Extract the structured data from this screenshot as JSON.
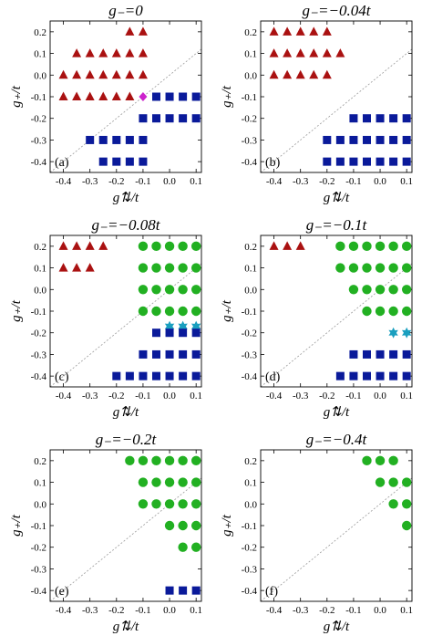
{
  "chart_data": [
    {
      "type": "scatter",
      "panel_label": "(a)",
      "title": "g₋=0",
      "xlabel": "g⇅/t",
      "ylabel": "g₊/t",
      "xlim": [
        -0.45,
        0.12
      ],
      "ylim": [
        -0.45,
        0.25
      ],
      "xticks": [
        "-0.4",
        "-0.3",
        "-0.2",
        "-0.1",
        "0.0",
        "0.1"
      ],
      "yticks": [
        "0.2",
        "0.1",
        "0.0",
        "-0.1",
        "-0.2",
        "-0.3",
        "-0.4"
      ],
      "diagonal": true,
      "series": [
        {
          "marker": "triangle",
          "color": "#aa1111",
          "points": [
            [
              -0.15,
              0.2
            ],
            [
              -0.1,
              0.2
            ],
            [
              -0.35,
              0.1
            ],
            [
              -0.3,
              0.1
            ],
            [
              -0.25,
              0.1
            ],
            [
              -0.2,
              0.1
            ],
            [
              -0.15,
              0.1
            ],
            [
              -0.1,
              0.1
            ],
            [
              -0.4,
              0.0
            ],
            [
              -0.35,
              0.0
            ],
            [
              -0.3,
              0.0
            ],
            [
              -0.25,
              0.0
            ],
            [
              -0.2,
              0.0
            ],
            [
              -0.15,
              0.0
            ],
            [
              -0.1,
              0.0
            ],
            [
              -0.4,
              -0.1
            ],
            [
              -0.35,
              -0.1
            ],
            [
              -0.3,
              -0.1
            ],
            [
              -0.25,
              -0.1
            ],
            [
              -0.2,
              -0.1
            ],
            [
              -0.15,
              -0.1
            ]
          ]
        },
        {
          "marker": "diamond",
          "color": "#cc22cc",
          "points": [
            [
              -0.1,
              -0.1
            ]
          ]
        },
        {
          "marker": "square",
          "color": "#0a1a9a",
          "points": [
            [
              -0.05,
              -0.1
            ],
            [
              0.0,
              -0.1
            ],
            [
              0.05,
              -0.1
            ],
            [
              0.1,
              -0.1
            ],
            [
              -0.1,
              -0.2
            ],
            [
              -0.05,
              -0.2
            ],
            [
              0.0,
              -0.2
            ],
            [
              0.05,
              -0.2
            ],
            [
              0.1,
              -0.2
            ],
            [
              -0.3,
              -0.3
            ],
            [
              -0.25,
              -0.3
            ],
            [
              -0.2,
              -0.3
            ],
            [
              -0.15,
              -0.3
            ],
            [
              -0.1,
              -0.3
            ],
            [
              -0.25,
              -0.4
            ],
            [
              -0.2,
              -0.4
            ],
            [
              -0.15,
              -0.4
            ],
            [
              -0.1,
              -0.4
            ]
          ]
        }
      ]
    },
    {
      "type": "scatter",
      "panel_label": "(b)",
      "title": "g₋=−0.04t",
      "xlabel": "g⇅/t",
      "ylabel": "g₊/t",
      "xlim": [
        -0.45,
        0.12
      ],
      "ylim": [
        -0.45,
        0.25
      ],
      "xticks": [
        "-0.4",
        "-0.3",
        "-0.2",
        "-0.1",
        "0.0",
        "0.1"
      ],
      "yticks": [
        "0.2",
        "0.1",
        "0.0",
        "-0.1",
        "-0.2",
        "-0.3",
        "-0.4"
      ],
      "diagonal": true,
      "series": [
        {
          "marker": "triangle",
          "color": "#aa1111",
          "points": [
            [
              -0.4,
              0.2
            ],
            [
              -0.35,
              0.2
            ],
            [
              -0.3,
              0.2
            ],
            [
              -0.25,
              0.2
            ],
            [
              -0.2,
              0.2
            ],
            [
              -0.4,
              0.1
            ],
            [
              -0.35,
              0.1
            ],
            [
              -0.3,
              0.1
            ],
            [
              -0.25,
              0.1
            ],
            [
              -0.2,
              0.1
            ],
            [
              -0.15,
              0.1
            ],
            [
              -0.4,
              0.0
            ],
            [
              -0.35,
              0.0
            ],
            [
              -0.3,
              0.0
            ],
            [
              -0.25,
              0.0
            ],
            [
              -0.2,
              0.0
            ]
          ]
        },
        {
          "marker": "square",
          "color": "#0a1a9a",
          "points": [
            [
              -0.1,
              -0.2
            ],
            [
              -0.05,
              -0.2
            ],
            [
              0.0,
              -0.2
            ],
            [
              0.05,
              -0.2
            ],
            [
              0.1,
              -0.2
            ],
            [
              -0.2,
              -0.3
            ],
            [
              -0.15,
              -0.3
            ],
            [
              -0.1,
              -0.3
            ],
            [
              -0.05,
              -0.3
            ],
            [
              0.0,
              -0.3
            ],
            [
              0.05,
              -0.3
            ],
            [
              0.1,
              -0.3
            ],
            [
              -0.2,
              -0.4
            ],
            [
              -0.15,
              -0.4
            ],
            [
              -0.1,
              -0.4
            ],
            [
              -0.05,
              -0.4
            ],
            [
              0.0,
              -0.4
            ],
            [
              0.05,
              -0.4
            ],
            [
              0.1,
              -0.4
            ]
          ]
        }
      ]
    },
    {
      "type": "scatter",
      "panel_label": "(c)",
      "title": "g₋=−0.08t",
      "xlabel": "g⇅/t",
      "ylabel": "g₊/t",
      "xlim": [
        -0.45,
        0.12
      ],
      "ylim": [
        -0.45,
        0.25
      ],
      "xticks": [
        "-0.4",
        "-0.3",
        "-0.2",
        "-0.1",
        "0.0",
        "0.1"
      ],
      "yticks": [
        "0.2",
        "0.1",
        "0.0",
        "-0.1",
        "-0.2",
        "-0.3",
        "-0.4"
      ],
      "diagonal": true,
      "series": [
        {
          "marker": "triangle",
          "color": "#aa1111",
          "points": [
            [
              -0.4,
              0.2
            ],
            [
              -0.35,
              0.2
            ],
            [
              -0.3,
              0.2
            ],
            [
              -0.25,
              0.2
            ],
            [
              -0.4,
              0.1
            ],
            [
              -0.35,
              0.1
            ],
            [
              -0.3,
              0.1
            ]
          ]
        },
        {
          "marker": "circle",
          "color": "#22b022",
          "points": [
            [
              -0.1,
              0.2
            ],
            [
              -0.05,
              0.2
            ],
            [
              0.0,
              0.2
            ],
            [
              0.05,
              0.2
            ],
            [
              0.1,
              0.2
            ],
            [
              -0.1,
              0.1
            ],
            [
              -0.05,
              0.1
            ],
            [
              0.0,
              0.1
            ],
            [
              0.05,
              0.1
            ],
            [
              0.1,
              0.1
            ],
            [
              -0.1,
              0.0
            ],
            [
              -0.05,
              0.0
            ],
            [
              0.0,
              0.0
            ],
            [
              0.05,
              0.0
            ],
            [
              0.1,
              0.0
            ],
            [
              -0.1,
              -0.1
            ],
            [
              -0.05,
              -0.1
            ],
            [
              0.0,
              -0.1
            ],
            [
              0.05,
              -0.1
            ],
            [
              0.1,
              -0.1
            ]
          ]
        },
        {
          "marker": "star",
          "color": "#1a9fbf",
          "points": [
            [
              0.0,
              -0.17
            ],
            [
              0.05,
              -0.17
            ],
            [
              0.1,
              -0.17
            ]
          ]
        },
        {
          "marker": "square",
          "color": "#0a1a9a",
          "points": [
            [
              -0.05,
              -0.2
            ],
            [
              0.0,
              -0.2
            ],
            [
              0.05,
              -0.2
            ],
            [
              0.1,
              -0.2
            ],
            [
              -0.1,
              -0.3
            ],
            [
              -0.05,
              -0.3
            ],
            [
              0.0,
              -0.3
            ],
            [
              0.05,
              -0.3
            ],
            [
              0.1,
              -0.3
            ],
            [
              -0.2,
              -0.4
            ],
            [
              -0.15,
              -0.4
            ],
            [
              -0.1,
              -0.4
            ],
            [
              -0.05,
              -0.4
            ],
            [
              0.0,
              -0.4
            ],
            [
              0.05,
              -0.4
            ],
            [
              0.1,
              -0.4
            ]
          ]
        }
      ]
    },
    {
      "type": "scatter",
      "panel_label": "(d)",
      "title": "g₋=−0.1t",
      "xlabel": "g⇅/t",
      "ylabel": "g₊/t",
      "xlim": [
        -0.45,
        0.12
      ],
      "ylim": [
        -0.45,
        0.25
      ],
      "xticks": [
        "-0.4",
        "-0.3",
        "-0.2",
        "-0.1",
        "0.0",
        "0.1"
      ],
      "yticks": [
        "0.2",
        "0.1",
        "0.0",
        "-0.1",
        "-0.2",
        "-0.3",
        "-0.4"
      ],
      "diagonal": true,
      "series": [
        {
          "marker": "triangle",
          "color": "#aa1111",
          "points": [
            [
              -0.4,
              0.2
            ],
            [
              -0.35,
              0.2
            ],
            [
              -0.3,
              0.2
            ]
          ]
        },
        {
          "marker": "circle",
          "color": "#22b022",
          "points": [
            [
              -0.15,
              0.2
            ],
            [
              -0.1,
              0.2
            ],
            [
              -0.05,
              0.2
            ],
            [
              0.0,
              0.2
            ],
            [
              0.05,
              0.2
            ],
            [
              0.1,
              0.2
            ],
            [
              -0.15,
              0.1
            ],
            [
              -0.1,
              0.1
            ],
            [
              -0.05,
              0.1
            ],
            [
              0.0,
              0.1
            ],
            [
              0.05,
              0.1
            ],
            [
              0.1,
              0.1
            ],
            [
              -0.1,
              0.0
            ],
            [
              -0.05,
              0.0
            ],
            [
              0.0,
              0.0
            ],
            [
              0.05,
              0.0
            ],
            [
              0.1,
              0.0
            ],
            [
              -0.05,
              -0.1
            ],
            [
              0.0,
              -0.1
            ],
            [
              0.05,
              -0.1
            ],
            [
              0.1,
              -0.1
            ]
          ]
        },
        {
          "marker": "star",
          "color": "#1a9fbf",
          "points": [
            [
              0.05,
              -0.2
            ],
            [
              0.1,
              -0.2
            ]
          ]
        },
        {
          "marker": "square",
          "color": "#0a1a9a",
          "points": [
            [
              -0.1,
              -0.3
            ],
            [
              -0.05,
              -0.3
            ],
            [
              0.0,
              -0.3
            ],
            [
              0.05,
              -0.3
            ],
            [
              0.1,
              -0.3
            ],
            [
              -0.15,
              -0.4
            ],
            [
              -0.1,
              -0.4
            ],
            [
              -0.05,
              -0.4
            ],
            [
              0.0,
              -0.4
            ],
            [
              0.05,
              -0.4
            ],
            [
              0.1,
              -0.4
            ]
          ]
        }
      ]
    },
    {
      "type": "scatter",
      "panel_label": "(e)",
      "title": "g₋=−0.2t",
      "xlabel": "g⇅/t",
      "ylabel": "g₊/t",
      "xlim": [
        -0.45,
        0.12
      ],
      "ylim": [
        -0.45,
        0.25
      ],
      "xticks": [
        "-0.4",
        "-0.3",
        "-0.2",
        "-0.1",
        "0.0",
        "0.1"
      ],
      "yticks": [
        "0.2",
        "0.1",
        "0.0",
        "-0.1",
        "-0.2",
        "-0.3",
        "-0.4"
      ],
      "diagonal": true,
      "series": [
        {
          "marker": "circle",
          "color": "#22b022",
          "points": [
            [
              -0.15,
              0.2
            ],
            [
              -0.1,
              0.2
            ],
            [
              -0.05,
              0.2
            ],
            [
              0.0,
              0.2
            ],
            [
              0.05,
              0.2
            ],
            [
              0.1,
              0.2
            ],
            [
              -0.1,
              0.1
            ],
            [
              -0.05,
              0.1
            ],
            [
              0.0,
              0.1
            ],
            [
              0.05,
              0.1
            ],
            [
              0.1,
              0.1
            ],
            [
              -0.1,
              0.0
            ],
            [
              -0.05,
              0.0
            ],
            [
              0.0,
              0.0
            ],
            [
              0.05,
              0.0
            ],
            [
              0.1,
              0.0
            ],
            [
              0.0,
              -0.1
            ],
            [
              0.05,
              -0.1
            ],
            [
              0.1,
              -0.1
            ],
            [
              0.05,
              -0.2
            ],
            [
              0.1,
              -0.2
            ]
          ]
        },
        {
          "marker": "square",
          "color": "#0a1a9a",
          "points": [
            [
              0.0,
              -0.4
            ],
            [
              0.05,
              -0.4
            ],
            [
              0.1,
              -0.4
            ]
          ]
        }
      ]
    },
    {
      "type": "scatter",
      "panel_label": "(f)",
      "title": "g₋=−0.4t",
      "xlabel": "g⇅/t",
      "ylabel": "g₊/t",
      "xlim": [
        -0.45,
        0.12
      ],
      "ylim": [
        -0.45,
        0.25
      ],
      "xticks": [
        "-0.4",
        "-0.3",
        "-0.2",
        "-0.1",
        "0.0",
        "0.1"
      ],
      "yticks": [
        "0.2",
        "0.1",
        "0.0",
        "-0.1",
        "-0.2",
        "-0.3",
        "-0.4"
      ],
      "diagonal": true,
      "series": [
        {
          "marker": "circle",
          "color": "#22b022",
          "points": [
            [
              -0.05,
              0.2
            ],
            [
              0.0,
              0.2
            ],
            [
              0.05,
              0.2
            ],
            [
              0.0,
              0.1
            ],
            [
              0.05,
              0.1
            ],
            [
              0.1,
              0.1
            ],
            [
              0.05,
              0.0
            ],
            [
              0.1,
              0.0
            ],
            [
              0.1,
              -0.1
            ]
          ]
        }
      ]
    }
  ]
}
